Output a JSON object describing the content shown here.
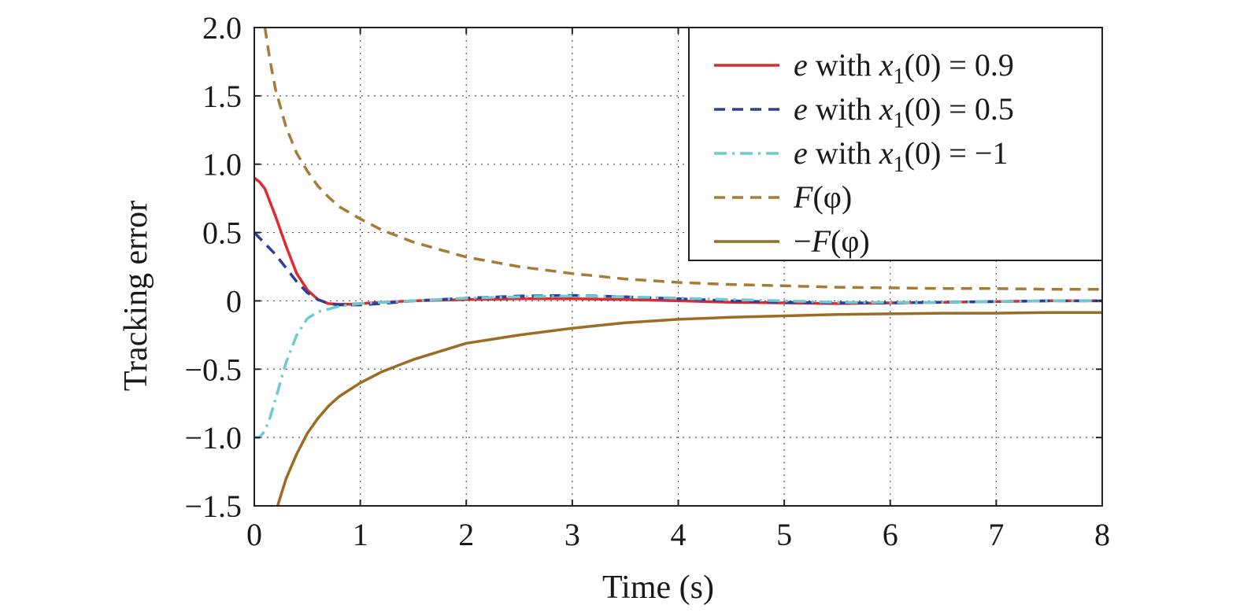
{
  "chart_data": {
    "type": "line",
    "title": "",
    "xlabel": "Time (s)",
    "ylabel": "Tracking error",
    "xlim": [
      0,
      8
    ],
    "ylim": [
      -1.5,
      2.0
    ],
    "xticks": [
      0,
      1,
      2,
      3,
      4,
      5,
      6,
      7,
      8
    ],
    "xtick_labels": [
      "0",
      "1",
      "2",
      "3",
      "4",
      "5",
      "6",
      "7",
      "8"
    ],
    "yticks": [
      2.0,
      1.5,
      1.0,
      0.5,
      0,
      -0.5,
      -1.0,
      -1.5
    ],
    "ytick_labels": [
      "2.0",
      "1.5",
      "1.0",
      "0.5",
      "0",
      "−0.5",
      "−1.0",
      "−1.5"
    ],
    "grid": true,
    "legend": "top-right",
    "series": [
      {
        "name": "e with x1(0) = 0.9",
        "legend_parts": {
          "italic_a": "e",
          "mid": " with ",
          "italic_b": "x",
          "sub": "1",
          "tail": "(0) = 0.9"
        },
        "color": "#e02a2f",
        "dash": "solid",
        "x": [
          0,
          0.05,
          0.1,
          0.2,
          0.3,
          0.4,
          0.5,
          0.6,
          0.7,
          0.8,
          0.9,
          1.0,
          1.2,
          1.5,
          2.0,
          2.5,
          3.0,
          3.5,
          4.0,
          4.5,
          5.0,
          5.5,
          6.0,
          6.5,
          7.0,
          7.5,
          8.0
        ],
        "y": [
          0.9,
          0.87,
          0.82,
          0.62,
          0.4,
          0.2,
          0.08,
          0.01,
          -0.02,
          -0.025,
          -0.025,
          -0.02,
          -0.01,
          0.0,
          0.01,
          0.015,
          0.015,
          0.01,
          0.0,
          -0.01,
          -0.015,
          -0.02,
          -0.015,
          -0.01,
          -0.005,
          0.0,
          0.0
        ]
      },
      {
        "name": "e with x1(0) = 0.5",
        "legend_parts": {
          "italic_a": "e",
          "mid": " with ",
          "italic_b": "x",
          "sub": "1",
          "tail": "(0) = 0.5"
        },
        "color": "#2c3e9c",
        "dash": "dashed",
        "x": [
          0,
          0.05,
          0.1,
          0.2,
          0.3,
          0.4,
          0.5,
          0.6,
          0.7,
          0.8,
          0.9,
          1.0,
          1.2,
          1.5,
          2.0,
          2.5,
          3.0,
          3.5,
          4.0,
          4.5,
          5.0,
          5.5,
          6.0,
          6.5,
          7.0,
          7.5,
          8.0
        ],
        "y": [
          0.5,
          0.46,
          0.42,
          0.34,
          0.24,
          0.14,
          0.06,
          0.01,
          -0.02,
          -0.03,
          -0.03,
          -0.03,
          -0.02,
          0.0,
          0.02,
          0.035,
          0.04,
          0.03,
          0.015,
          0.0,
          -0.01,
          -0.015,
          -0.015,
          -0.01,
          -0.005,
          0.0,
          0.0
        ]
      },
      {
        "name": "e with x1(0) = −1",
        "legend_parts": {
          "italic_a": "e",
          "mid": " with ",
          "italic_b": "x",
          "sub": "1",
          "tail": "(0) = −1"
        },
        "color": "#6ccbd0",
        "dash": "dashdot",
        "x": [
          0,
          0.05,
          0.1,
          0.15,
          0.2,
          0.3,
          0.4,
          0.5,
          0.6,
          0.7,
          0.8,
          0.9,
          1.0,
          1.2,
          1.5,
          2.0,
          2.5,
          3.0,
          3.5,
          4.0,
          4.5,
          5.0,
          5.5,
          6.0,
          6.5,
          7.0,
          7.5,
          8.0
        ],
        "y": [
          -1.0,
          -1.0,
          -0.95,
          -0.85,
          -0.72,
          -0.45,
          -0.25,
          -0.13,
          -0.08,
          -0.06,
          -0.04,
          -0.03,
          -0.02,
          -0.01,
          0.0,
          0.02,
          0.03,
          0.035,
          0.03,
          0.02,
          0.01,
          0.0,
          -0.01,
          -0.01,
          -0.01,
          -0.005,
          0.0,
          0.0
        ]
      },
      {
        "name": "F(φ)",
        "legend_parts": {
          "italic_a": "F",
          "mid": "",
          "italic_b": "",
          "sub": "",
          "tail": "(φ)"
        },
        "color": "#a77b34",
        "dash": "dashed",
        "x": [
          0.1,
          0.15,
          0.2,
          0.3,
          0.4,
          0.5,
          0.6,
          0.7,
          0.8,
          1.0,
          1.2,
          1.5,
          2.0,
          2.5,
          3.0,
          3.5,
          4.0,
          4.5,
          5.0,
          5.5,
          6.0,
          6.5,
          7.0,
          7.5,
          8.0
        ],
        "y": [
          2.0,
          1.75,
          1.55,
          1.27,
          1.08,
          0.95,
          0.84,
          0.76,
          0.69,
          0.6,
          0.52,
          0.43,
          0.32,
          0.25,
          0.2,
          0.16,
          0.135,
          0.12,
          0.11,
          0.1,
          0.095,
          0.09,
          0.09,
          0.085,
          0.085
        ]
      },
      {
        "name": "−F(φ)",
        "legend_parts": {
          "italic_a": "",
          "mid": "−",
          "italic_b": "F",
          "sub": "",
          "tail": "(φ)"
        },
        "color": "#9a6c24",
        "dash": "solid",
        "x": [
          0.22,
          0.3,
          0.4,
          0.5,
          0.6,
          0.7,
          0.8,
          1.0,
          1.2,
          1.5,
          2.0,
          2.5,
          3.0,
          3.5,
          4.0,
          4.5,
          5.0,
          5.5,
          6.0,
          6.5,
          7.0,
          7.5,
          8.0
        ],
        "y": [
          -1.5,
          -1.3,
          -1.12,
          -0.97,
          -0.86,
          -0.77,
          -0.7,
          -0.6,
          -0.52,
          -0.43,
          -0.31,
          -0.25,
          -0.2,
          -0.16,
          -0.135,
          -0.12,
          -0.11,
          -0.1,
          -0.095,
          -0.09,
          -0.09,
          -0.085,
          -0.085
        ]
      }
    ]
  }
}
